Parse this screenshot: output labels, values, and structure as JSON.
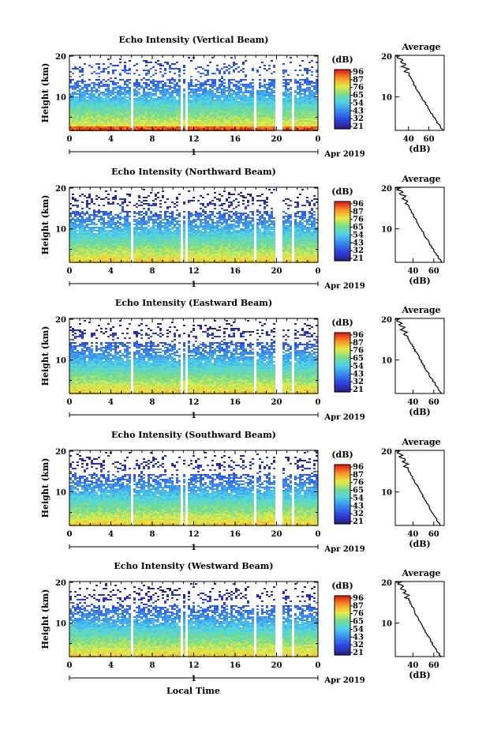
{
  "figure": {
    "date_label": "Apr 2019",
    "xlabel": "Local Time",
    "day_marker": "1",
    "panel_ylabel": "Height (km)",
    "colorbar_unit": "(dB)",
    "avg_title": "Average",
    "avg_xlabel": "(dB)"
  },
  "chart_data": [
    {
      "type": "heatmap",
      "title": "Echo Intensity (Vertical Beam)",
      "ylabel": "Height (km)",
      "x_ticks": [
        "0",
        "4",
        "8",
        "12",
        "16",
        "20",
        "0"
      ],
      "xlim": [
        0,
        24
      ],
      "y_ticks": [
        "10",
        "20"
      ],
      "ylim": [
        1.8,
        20.2
      ],
      "colorbar": {
        "unit": "(dB)",
        "ticks": [
          "96",
          "87",
          "76",
          "65",
          "54",
          "43",
          "32",
          "21"
        ],
        "range": [
          21,
          96
        ]
      },
      "missing_time_bands": [
        [
          5.85,
          6.05
        ],
        [
          10.7,
          10.9
        ],
        [
          11.05,
          11.35
        ],
        [
          17.7,
          18.05
        ],
        [
          19.8,
          20.45
        ],
        [
          21.3,
          21.6
        ]
      ],
      "average_profile": {
        "title": "Average",
        "xlabel": "(dB)",
        "x_ticks": [
          "40",
          "60"
        ],
        "xlim": [
          27,
          75
        ],
        "y_ticks": [
          "10",
          "20"
        ],
        "ylim": [
          1.8,
          20.2
        ],
        "surface_value": 74,
        "top_value": 30
      }
    },
    {
      "type": "heatmap",
      "title": "Echo Intensity (Northward Beam)",
      "ylabel": "Height (km)",
      "x_ticks": [
        "0",
        "4",
        "8",
        "12",
        "16",
        "20",
        "0"
      ],
      "xlim": [
        0,
        24
      ],
      "y_ticks": [
        "10",
        "20"
      ],
      "ylim": [
        1.8,
        20.2
      ],
      "colorbar": {
        "unit": "(dB)",
        "ticks": [
          "96",
          "87",
          "76",
          "65",
          "54",
          "43",
          "32",
          "21"
        ],
        "range": [
          21,
          96
        ]
      },
      "missing_time_bands": [
        [
          5.85,
          6.05
        ],
        [
          10.7,
          10.9
        ],
        [
          11.05,
          11.35
        ],
        [
          17.7,
          18.05
        ],
        [
          19.8,
          20.45
        ],
        [
          21.3,
          21.6
        ]
      ],
      "average_profile": {
        "title": "Average",
        "xlabel": "(dB)",
        "x_ticks": [
          "40",
          "60"
        ],
        "xlim": [
          23,
          70
        ],
        "y_ticks": [
          "10",
          "20"
        ],
        "ylim": [
          1.8,
          20.2
        ],
        "surface_value": 68,
        "top_value": 26
      }
    },
    {
      "type": "heatmap",
      "title": "Echo Intensity (Eastward Beam)",
      "ylabel": "Height (km)",
      "x_ticks": [
        "0",
        "4",
        "8",
        "12",
        "16",
        "20",
        "0"
      ],
      "xlim": [
        0,
        24
      ],
      "y_ticks": [
        "10",
        "20"
      ],
      "ylim": [
        1.8,
        20.2
      ],
      "colorbar": {
        "unit": "(dB)",
        "ticks": [
          "96",
          "87",
          "76",
          "65",
          "54",
          "43",
          "32",
          "21"
        ],
        "range": [
          21,
          96
        ]
      },
      "missing_time_bands": [
        [
          5.85,
          6.05
        ],
        [
          10.7,
          10.9
        ],
        [
          11.05,
          11.35
        ],
        [
          17.7,
          18.05
        ],
        [
          19.8,
          20.45
        ],
        [
          21.3,
          21.6
        ]
      ],
      "average_profile": {
        "title": "Average",
        "xlabel": "(dB)",
        "x_ticks": [
          "40",
          "60"
        ],
        "xlim": [
          23,
          70
        ],
        "y_ticks": [
          "10",
          "20"
        ],
        "ylim": [
          1.8,
          20.2
        ],
        "surface_value": 68,
        "top_value": 25
      }
    },
    {
      "type": "heatmap",
      "title": "Echo Intensity (Southward Beam)",
      "ylabel": "Height (km)",
      "x_ticks": [
        "0",
        "4",
        "8",
        "12",
        "16",
        "20",
        "0"
      ],
      "xlim": [
        0,
        24
      ],
      "y_ticks": [
        "10",
        "20"
      ],
      "ylim": [
        1.8,
        20.2
      ],
      "colorbar": {
        "unit": "(dB)",
        "ticks": [
          "96",
          "87",
          "76",
          "65",
          "54",
          "43",
          "32",
          "21"
        ],
        "range": [
          21,
          96
        ]
      },
      "missing_time_bands": [
        [
          5.85,
          6.05
        ],
        [
          10.7,
          10.9
        ],
        [
          11.05,
          11.35
        ],
        [
          17.7,
          18.05
        ],
        [
          19.8,
          20.45
        ],
        [
          21.3,
          21.6
        ]
      ],
      "average_profile": {
        "title": "Average",
        "xlabel": "(dB)",
        "x_ticks": [
          "40",
          "60"
        ],
        "xlim": [
          23,
          70
        ],
        "y_ticks": [
          "10",
          "20"
        ],
        "ylim": [
          1.8,
          20.2
        ],
        "surface_value": 67,
        "top_value": 26
      }
    },
    {
      "type": "heatmap",
      "title": "Echo Intensity (Westward Beam)",
      "ylabel": "Height (km)",
      "x_ticks": [
        "0",
        "4",
        "8",
        "12",
        "16",
        "20",
        "0"
      ],
      "xlim": [
        0,
        24
      ],
      "y_ticks": [
        "10",
        "20"
      ],
      "ylim": [
        1.8,
        20.2
      ],
      "colorbar": {
        "unit": "(dB)",
        "ticks": [
          "96",
          "87",
          "76",
          "65",
          "54",
          "43",
          "32",
          "21"
        ],
        "range": [
          21,
          96
        ]
      },
      "missing_time_bands": [
        [
          5.85,
          6.05
        ],
        [
          10.7,
          10.9
        ],
        [
          11.05,
          11.35
        ],
        [
          17.7,
          18.05
        ],
        [
          19.8,
          20.45
        ],
        [
          21.3,
          21.6
        ]
      ],
      "average_profile": {
        "title": "Average",
        "xlabel": "(dB)",
        "x_ticks": [
          "40",
          "60"
        ],
        "xlim": [
          23,
          70
        ],
        "y_ticks": [
          "10",
          "20"
        ],
        "ylim": [
          1.8,
          20.2
        ],
        "surface_value": 67,
        "top_value": 27
      }
    }
  ]
}
